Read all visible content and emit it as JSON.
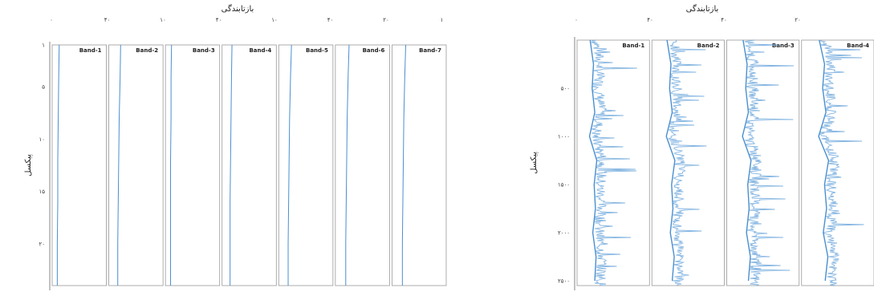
{
  "chart_data": [
    {
      "type": "line",
      "layout": "band-profile-panels",
      "title": "بازتابندگی",
      "ylabel": "پیکسل",
      "xlabel": "",
      "x_ticks": [
        "۰",
        "۴۰",
        "۱۰",
        "۴۰",
        "۱۰",
        "۴۰",
        "۲۰",
        "۱"
      ],
      "y_ticks": [
        "۱",
        "۵",
        "۱۰",
        "۱۵",
        "۲۰"
      ],
      "ylim": [
        1,
        24
      ],
      "y_tick_values": [
        1,
        5,
        10,
        15,
        20
      ],
      "panel_xlim": [
        0,
        1
      ],
      "series": [
        {
          "name": "Band-1",
          "y": [
            1,
            4,
            8,
            12,
            16,
            20,
            24
          ],
          "values": [
            0.08,
            0.07,
            0.06,
            0.05,
            0.05,
            0.04,
            0.04
          ]
        },
        {
          "name": "Band-2",
          "y": [
            1,
            4,
            8,
            12,
            16,
            20,
            24
          ],
          "values": [
            0.18,
            0.17,
            0.15,
            0.14,
            0.13,
            0.12,
            0.12
          ]
        },
        {
          "name": "Band-3",
          "y": [
            1,
            4,
            8,
            12,
            16,
            20,
            24
          ],
          "values": [
            0.06,
            0.05,
            0.05,
            0.04,
            0.04,
            0.04,
            0.04
          ]
        },
        {
          "name": "Band-4",
          "y": [
            1,
            4,
            8,
            12,
            16,
            20,
            24
          ],
          "values": [
            0.14,
            0.13,
            0.12,
            0.11,
            0.1,
            0.1,
            0.1
          ]
        },
        {
          "name": "Band-5",
          "y": [
            1,
            4,
            8,
            12,
            16,
            20,
            24
          ],
          "values": [
            0.2,
            0.18,
            0.16,
            0.15,
            0.14,
            0.13,
            0.13
          ]
        },
        {
          "name": "Band-6",
          "y": [
            1,
            4,
            8,
            12,
            16,
            20,
            24
          ],
          "values": [
            0.22,
            0.2,
            0.18,
            0.17,
            0.16,
            0.15,
            0.15
          ]
        },
        {
          "name": "Band-7",
          "y": [
            1,
            4,
            8,
            12,
            16,
            20,
            24
          ],
          "values": [
            0.22,
            0.2,
            0.18,
            0.17,
            0.16,
            0.15,
            0.15
          ]
        }
      ]
    },
    {
      "type": "line",
      "layout": "band-profile-panels",
      "title": "بازتابندگی",
      "ylabel": "پیکسل",
      "xlabel": "",
      "x_ticks": [
        "۰",
        "۴۰",
        "۴۰",
        "۲۰"
      ],
      "y_ticks": [
        "۵۰۰",
        "۱۰۰۰",
        "۱۵۰۰",
        "۲۰۰۰",
        "۲۵۰۰"
      ],
      "ylim": [
        0,
        2550
      ],
      "y_tick_values": [
        500,
        1000,
        1500,
        2000,
        2500
      ],
      "panel_xlim": [
        0,
        1
      ],
      "series": [
        {
          "name": "Band-1",
          "y": [
            0,
            250,
            500,
            750,
            1000,
            1250,
            1500,
            1750,
            2000,
            2250,
            2500
          ],
          "values": [
            0.15,
            0.2,
            0.18,
            0.22,
            0.14,
            0.25,
            0.21,
            0.23,
            0.19,
            0.24,
            0.22
          ]
        },
        {
          "name": "Band-2",
          "y": [
            0,
            250,
            500,
            750,
            1000,
            1250,
            1500,
            1750,
            2000,
            2250,
            2500
          ],
          "values": [
            0.18,
            0.24,
            0.22,
            0.26,
            0.17,
            0.3,
            0.25,
            0.27,
            0.23,
            0.29,
            0.26
          ]
        },
        {
          "name": "Band-3",
          "y": [
            0,
            250,
            500,
            750,
            1000,
            1250,
            1500,
            1750,
            2000,
            2250,
            2500
          ],
          "values": [
            0.2,
            0.26,
            0.24,
            0.28,
            0.19,
            0.32,
            0.27,
            0.29,
            0.25,
            0.31,
            0.28
          ]
        },
        {
          "name": "Band-4",
          "y": [
            0,
            250,
            500,
            750,
            1000,
            1250,
            1500,
            1750,
            2000,
            2250,
            2500
          ],
          "values": [
            0.22,
            0.3,
            0.27,
            0.32,
            0.21,
            0.36,
            0.3,
            0.33,
            0.28,
            0.35,
            0.31
          ]
        }
      ]
    }
  ],
  "colors": {
    "line": "#4a8fd0",
    "fill": "#6fa8dc",
    "axis": "#666666",
    "grid": "#999999"
  }
}
